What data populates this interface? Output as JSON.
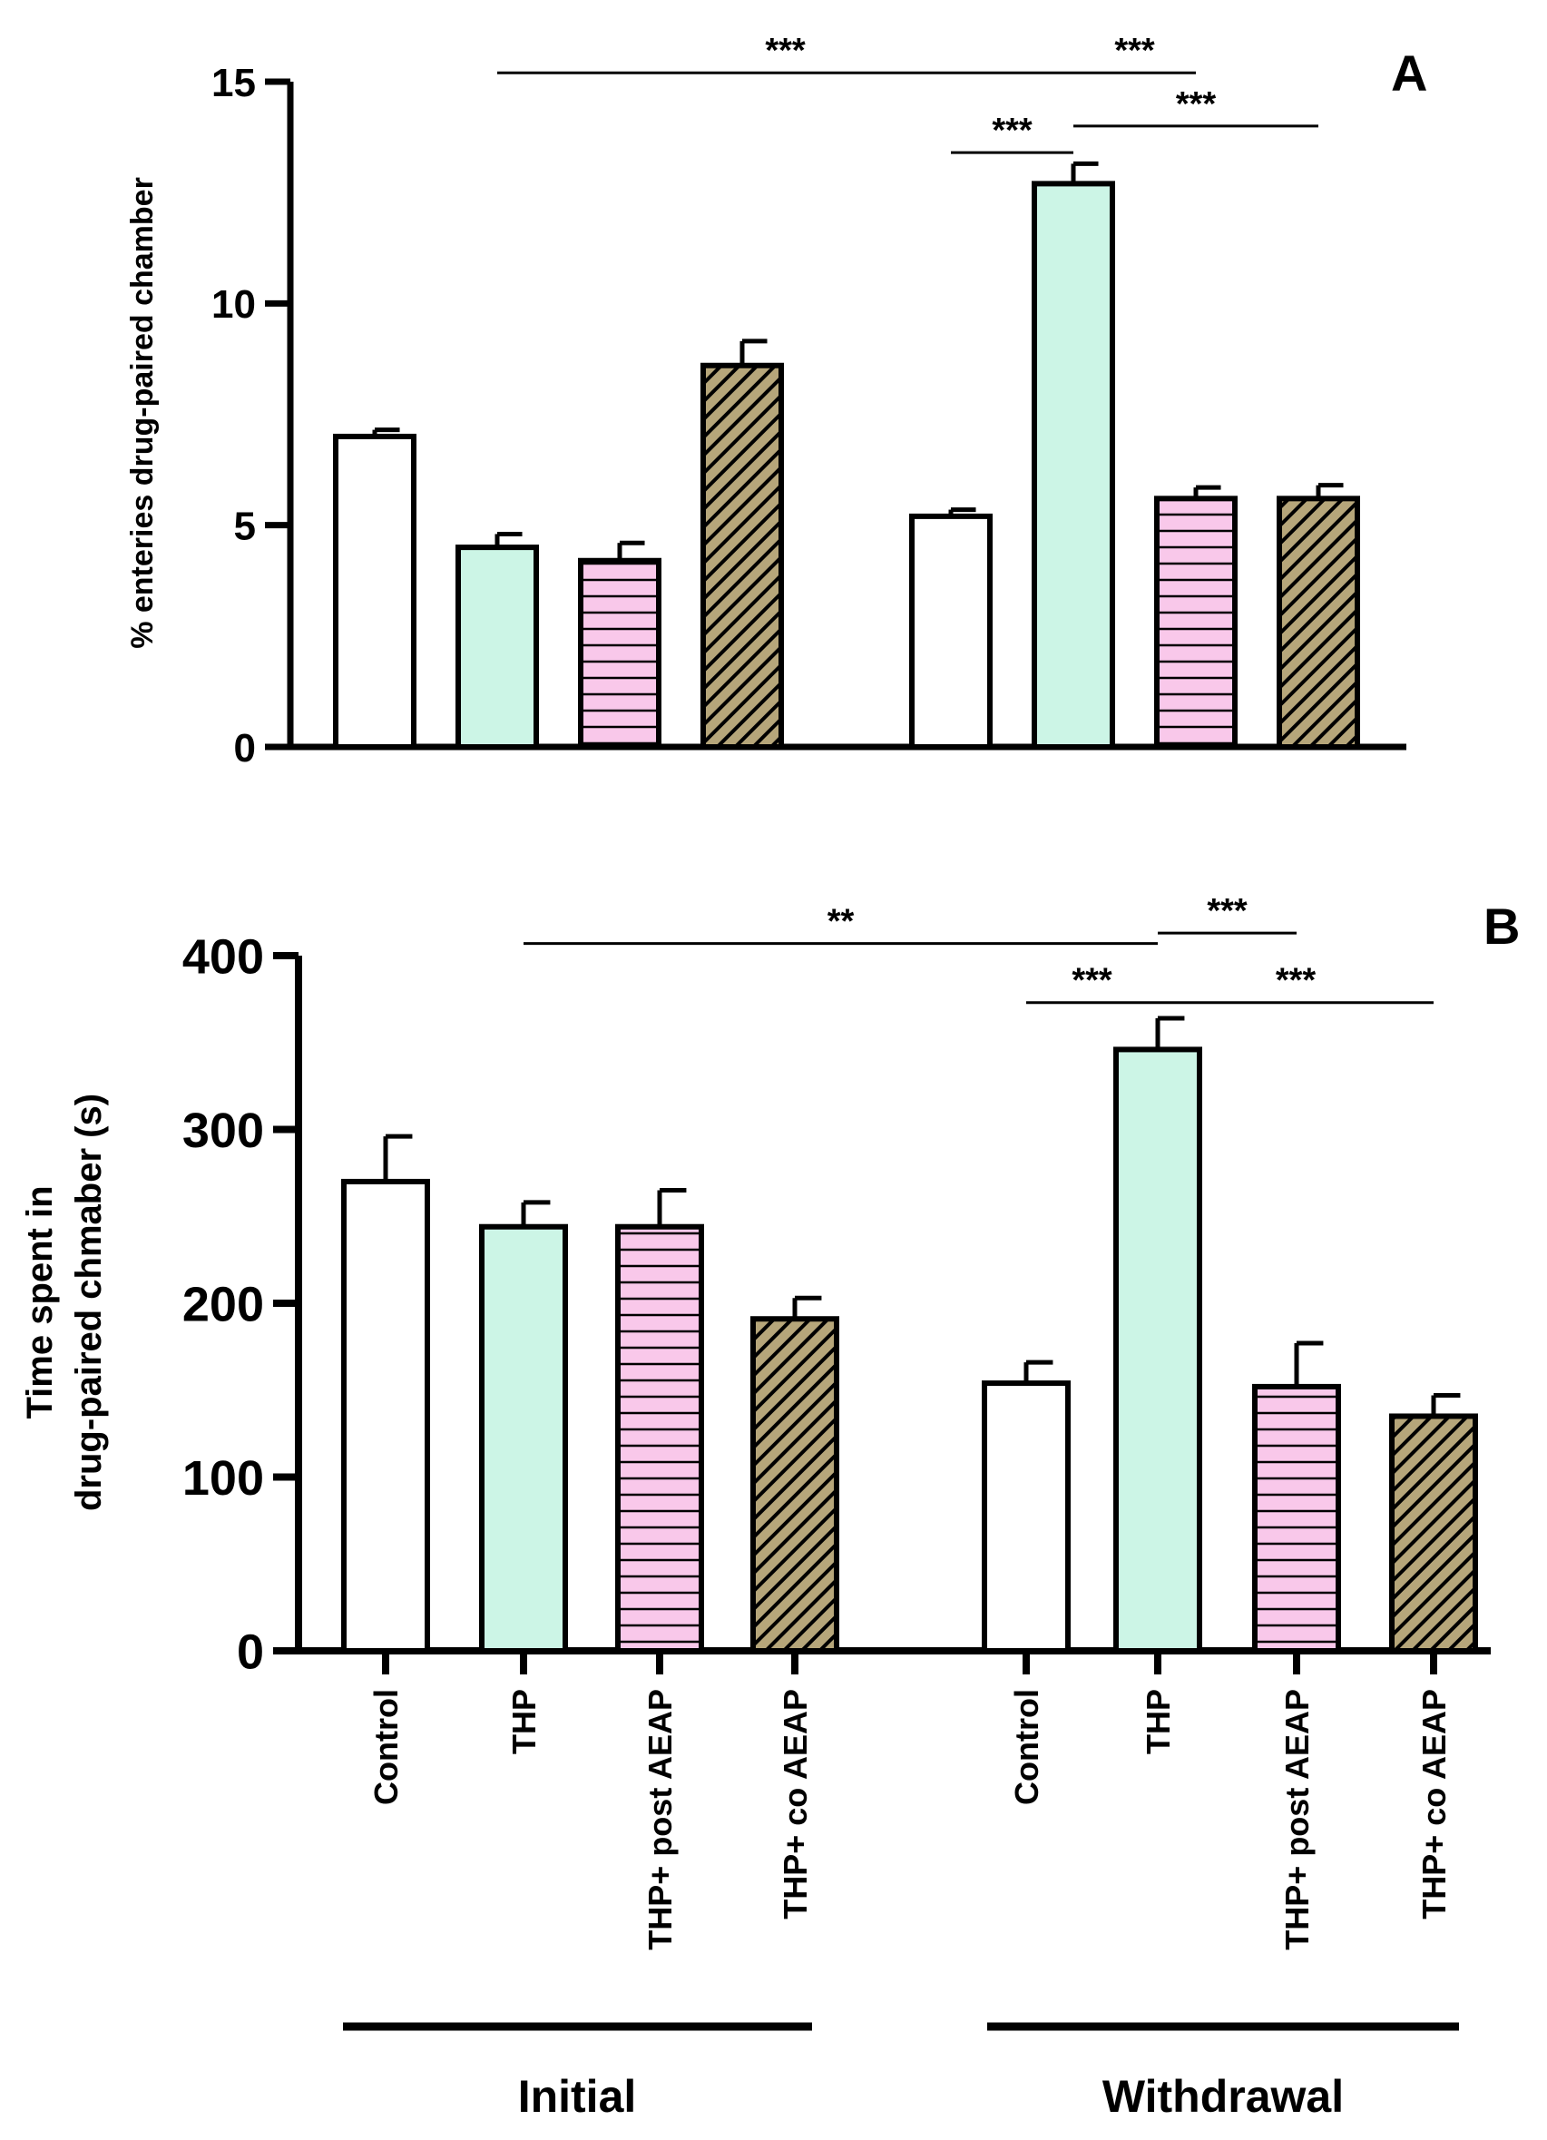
{
  "colors": {
    "control": "#ffffff",
    "thp": "#ccf5e6",
    "post": "#f9c8ea",
    "co": "#b6a67a",
    "line": "#000000"
  },
  "categories": [
    "Control",
    "THP",
    "THP+ post AEAP",
    "THP+ co AEAP"
  ],
  "groups": [
    "Initial",
    "Withdrawal"
  ],
  "chart_data": [
    {
      "panel": "A",
      "type": "bar",
      "ylabel": "%  enteries drug-paired chamber",
      "ylim": [
        0,
        15
      ],
      "yticks": [
        0,
        5,
        10,
        15
      ],
      "grid": false,
      "categories": [
        "Control",
        "THP",
        "THP+ post AEAP",
        "THP+ co AEAP",
        "Control",
        "THP",
        "THP+ post AEAP",
        "THP+ co AEAP"
      ],
      "group_of_bar": [
        "Initial",
        "Initial",
        "Initial",
        "Initial",
        "Withdrawal",
        "Withdrawal",
        "Withdrawal",
        "Withdrawal"
      ],
      "values": [
        7.0,
        4.5,
        4.2,
        8.6,
        5.2,
        12.7,
        5.6,
        5.6
      ],
      "errors": [
        0.15,
        0.3,
        0.4,
        0.55,
        0.15,
        0.45,
        0.25,
        0.3
      ],
      "fills": [
        "control",
        "thp",
        "post",
        "co",
        "control",
        "thp",
        "post",
        "co"
      ],
      "significance": [
        {
          "from_bar": 1,
          "to_bar": 5,
          "label": "***",
          "level": 15.2
        },
        {
          "from_bar": 5,
          "to_bar": 6,
          "label": "***",
          "level": 15.2
        },
        {
          "from_bar": 4,
          "to_bar": 5,
          "label": "***",
          "level": 13.4
        },
        {
          "from_bar": 5,
          "to_bar": 7,
          "label": "***",
          "level": 14.0
        }
      ]
    },
    {
      "panel": "B",
      "type": "bar",
      "ylabel": [
        "Time spent in",
        "drug-paired  chmaber (s)"
      ],
      "ylim": [
        0,
        400
      ],
      "yticks": [
        0,
        100,
        200,
        300,
        400
      ],
      "grid": false,
      "categories": [
        "Control",
        "THP",
        "THP+ post AEAP",
        "THP+ co AEAP",
        "Control",
        "THP",
        "THP+ post AEAP",
        "THP+ co AEAP"
      ],
      "group_of_bar": [
        "Initial",
        "Initial",
        "Initial",
        "Initial",
        "Withdrawal",
        "Withdrawal",
        "Withdrawal",
        "Withdrawal"
      ],
      "values": [
        270,
        244,
        244,
        191,
        154,
        346,
        152,
        135
      ],
      "errors": [
        26,
        14,
        21,
        12,
        12,
        18,
        25,
        12
      ],
      "fills": [
        "control",
        "thp",
        "post",
        "co",
        "control",
        "thp",
        "post",
        "co"
      ],
      "significance": [
        {
          "from_bar": 1,
          "to_bar": 5,
          "label": "**",
          "level": 407
        },
        {
          "from_bar": 5,
          "to_bar": 6,
          "label": "***",
          "level": 413
        },
        {
          "from_bar": 4,
          "to_bar": 5,
          "label": "***",
          "level": 373
        },
        {
          "from_bar": 5,
          "to_bar": 7,
          "label": "***",
          "level": 373
        }
      ]
    }
  ]
}
